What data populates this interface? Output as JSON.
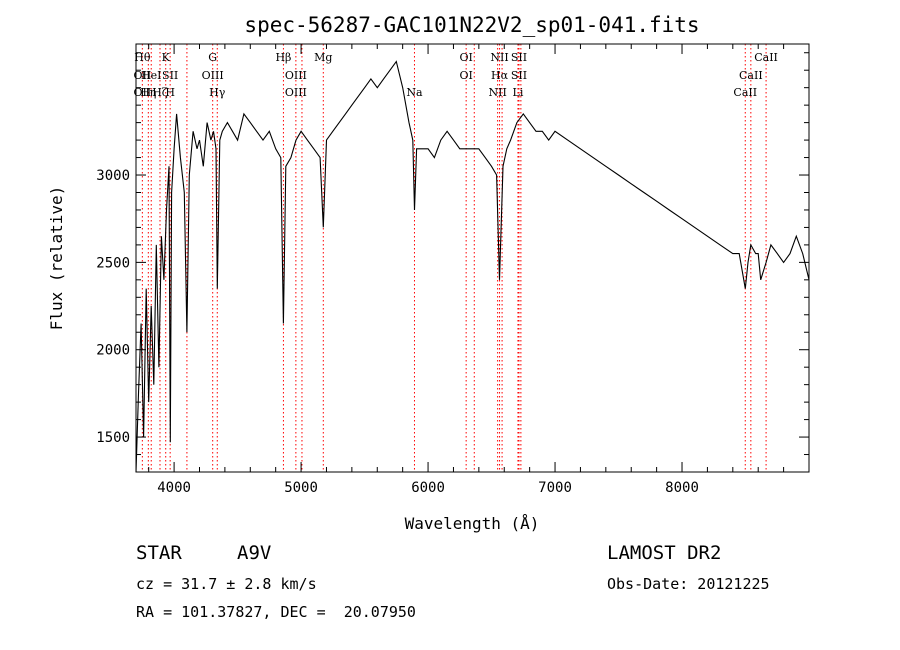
{
  "chart_data": {
    "type": "line",
    "title": "spec-56287-GAC101N22V2_sp01-041.fits",
    "xlabel": "Wavelength (Å)",
    "ylabel": "Flux (relative)",
    "xlim": [
      3700,
      9000
    ],
    "ylim": [
      1300,
      3750
    ],
    "xticks": [
      4000,
      5000,
      6000,
      7000,
      8000
    ],
    "yticks": [
      1500,
      2000,
      2500,
      3000
    ],
    "grid": false,
    "x": [
      3700,
      3720,
      3740,
      3760,
      3780,
      3800,
      3820,
      3840,
      3860,
      3880,
      3900,
      3920,
      3940,
      3960,
      3970,
      3980,
      4000,
      4020,
      4050,
      4080,
      4101,
      4120,
      4150,
      4180,
      4200,
      4230,
      4260,
      4290,
      4310,
      4330,
      4340,
      4360,
      4380,
      4420,
      4460,
      4500,
      4550,
      4600,
      4650,
      4700,
      4750,
      4800,
      4840,
      4861,
      4880,
      4920,
      4960,
      5000,
      5050,
      5100,
      5150,
      5175,
      5200,
      5250,
      5300,
      5350,
      5400,
      5450,
      5500,
      5550,
      5600,
      5650,
      5700,
      5750,
      5800,
      5850,
      5880,
      5893,
      5910,
      5950,
      6000,
      6050,
      6100,
      6150,
      6200,
      6250,
      6300,
      6350,
      6400,
      6450,
      6500,
      6540,
      6563,
      6590,
      6620,
      6650,
      6700,
      6750,
      6800,
      6850,
      6900,
      6950,
      7000,
      7100,
      7200,
      7300,
      7400,
      7500,
      7600,
      7700,
      7800,
      7900,
      8000,
      8100,
      8200,
      8300,
      8400,
      8450,
      8498,
      8520,
      8542,
      8580,
      8600,
      8620,
      8662,
      8700,
      8750,
      8800,
      8850,
      8900,
      8950,
      9000
    ],
    "y": [
      1300,
      1750,
      2150,
      1500,
      2350,
      1700,
      2250,
      1800,
      2600,
      1900,
      2650,
      2400,
      2800,
      3050,
      1470,
      2900,
      3150,
      3350,
      3100,
      2900,
      2100,
      3000,
      3250,
      3150,
      3200,
      3050,
      3300,
      3200,
      3250,
      3150,
      2350,
      3200,
      3250,
      3300,
      3250,
      3200,
      3350,
      3300,
      3250,
      3200,
      3250,
      3150,
      3100,
      2150,
      3050,
      3100,
      3200,
      3250,
      3200,
      3150,
      3100,
      2700,
      3200,
      3250,
      3300,
      3350,
      3400,
      3450,
      3500,
      3550,
      3500,
      3550,
      3600,
      3650,
      3500,
      3300,
      3200,
      2800,
      3150,
      3150,
      3150,
      3100,
      3200,
      3250,
      3200,
      3150,
      3150,
      3150,
      3150,
      3100,
      3050,
      3000,
      2400,
      3050,
      3150,
      3200,
      3300,
      3350,
      3300,
      3250,
      3250,
      3200,
      3250,
      3200,
      3150,
      3100,
      3050,
      3000,
      2950,
      2900,
      2850,
      2800,
      2750,
      2700,
      2650,
      2600,
      2550,
      2550,
      2350,
      2500,
      2600,
      2550,
      2550,
      2400,
      2500,
      2600,
      2550,
      2500,
      2550,
      2650,
      2550,
      2400
    ],
    "lines": [
      {
        "wl": 3750,
        "rows": [
          "Hθ",
          "OII",
          "OII"
        ]
      },
      {
        "wl": 3797,
        "rows": [
          "",
          "",
          "Hη"
        ]
      },
      {
        "wl": 3820,
        "rows": [
          "",
          "HeI",
          ""
        ]
      },
      {
        "wl": 3889,
        "rows": [
          "",
          "",
          "Hζ"
        ]
      },
      {
        "wl": 3934,
        "rows": [
          "K",
          "",
          ""
        ]
      },
      {
        "wl": 3969,
        "rows": [
          "",
          "SII",
          "H"
        ]
      },
      {
        "wl": 4101,
        "rows": [
          "",
          "",
          ""
        ]
      },
      {
        "wl": 4304,
        "rows": [
          "G",
          "OIII",
          ""
        ]
      },
      {
        "wl": 4340,
        "rows": [
          "",
          "",
          "Hγ"
        ]
      },
      {
        "wl": 4861,
        "rows": [
          "Hβ",
          "",
          ""
        ]
      },
      {
        "wl": 4959,
        "rows": [
          "",
          "OIII",
          "OIII"
        ]
      },
      {
        "wl": 5007,
        "rows": [
          "",
          "",
          ""
        ]
      },
      {
        "wl": 5175,
        "rows": [
          "Mg",
          "",
          ""
        ]
      },
      {
        "wl": 5893,
        "rows": [
          "",
          "",
          "Na"
        ]
      },
      {
        "wl": 6300,
        "rows": [
          "OI",
          "OI",
          ""
        ]
      },
      {
        "wl": 6364,
        "rows": [
          "",
          "",
          ""
        ]
      },
      {
        "wl": 6548,
        "rows": [
          "",
          "",
          "NII"
        ]
      },
      {
        "wl": 6563,
        "rows": [
          "NII",
          "Hα",
          ""
        ]
      },
      {
        "wl": 6583,
        "rows": [
          "",
          "",
          ""
        ]
      },
      {
        "wl": 6708,
        "rows": [
          "",
          "",
          "Li"
        ]
      },
      {
        "wl": 6716,
        "rows": [
          "SII",
          "SII",
          ""
        ]
      },
      {
        "wl": 6731,
        "rows": [
          "",
          "",
          ""
        ]
      },
      {
        "wl": 8498,
        "rows": [
          "",
          "",
          "CaII"
        ]
      },
      {
        "wl": 8542,
        "rows": [
          "",
          "CaII",
          ""
        ]
      },
      {
        "wl": 8662,
        "rows": [
          "CaII",
          "",
          ""
        ]
      }
    ]
  },
  "info": {
    "obj_class": "STAR",
    "subclass": "A9V",
    "survey": "LAMOST DR2",
    "cz": "cz = 31.7 ± 2.8 km/s",
    "obs_date": "Obs-Date: 20121225",
    "radec": "RA = 101.37827, DEC =  20.07950"
  }
}
